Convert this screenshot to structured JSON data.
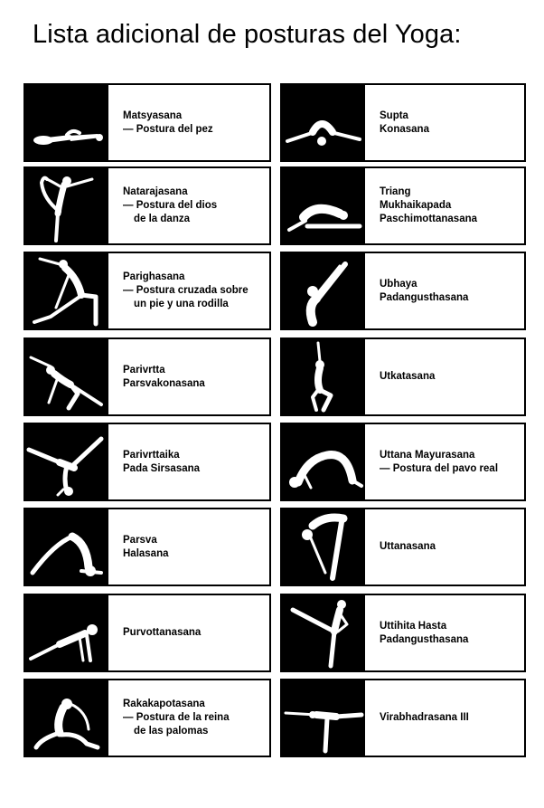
{
  "title": "Lista adicional de posturas del Yoga:",
  "left_column": [
    {
      "lines": [
        "Matsyasana",
        "— Postura del pez"
      ],
      "figure_icon": "fish-pose-icon"
    },
    {
      "lines": [
        "Natarajasana",
        "— Postura del dios",
        "de la danza"
      ],
      "figure_icon": "dancer-pose-icon"
    },
    {
      "lines": [
        "Parighasana",
        "— Postura cruzada sobre",
        "un pie y una rodilla"
      ],
      "figure_icon": "gate-pose-icon"
    },
    {
      "lines": [
        "Parivrtta",
        "Parsvakonasana"
      ],
      "figure_icon": "revolved-side-angle-icon"
    },
    {
      "lines": [
        "Parivrttaika",
        "Pada Sirsasana"
      ],
      "figure_icon": "revolved-leg-behind-head-icon"
    },
    {
      "lines": [
        "Parsva",
        "Halasana"
      ],
      "figure_icon": "side-plough-icon"
    },
    {
      "lines": [
        "Purvottanasana"
      ],
      "figure_icon": "upward-plank-icon"
    },
    {
      "lines": [
        "Rakakapotasana",
        "— Postura de la reina",
        "de las palomas"
      ],
      "figure_icon": "king-pigeon-icon"
    }
  ],
  "right_column": [
    {
      "lines": [
        "Supta",
        "Konasana"
      ],
      "figure_icon": "reclining-angle-icon"
    },
    {
      "lines": [
        "Triang",
        "Mukhaikapada",
        "Paschimottanasana"
      ],
      "figure_icon": "seated-forward-bend-icon"
    },
    {
      "lines": [
        "Ubhaya",
        "Padangusthasana"
      ],
      "figure_icon": "both-big-toes-icon"
    },
    {
      "lines": [
        "Utkatasana"
      ],
      "figure_icon": "chair-pose-icon"
    },
    {
      "lines": [
        "Uttana Mayurasana",
        "— Postura del pavo real"
      ],
      "figure_icon": "bridge-pose-icon"
    },
    {
      "lines": [
        "Uttanasana"
      ],
      "figure_icon": "standing-forward-bend-icon"
    },
    {
      "lines": [
        "Uttihita Hasta",
        "Padangusthasana"
      ],
      "figure_icon": "extended-hand-to-toe-icon"
    },
    {
      "lines": [
        "Virabhadrasana III"
      ],
      "figure_icon": "warrior-three-icon"
    }
  ]
}
